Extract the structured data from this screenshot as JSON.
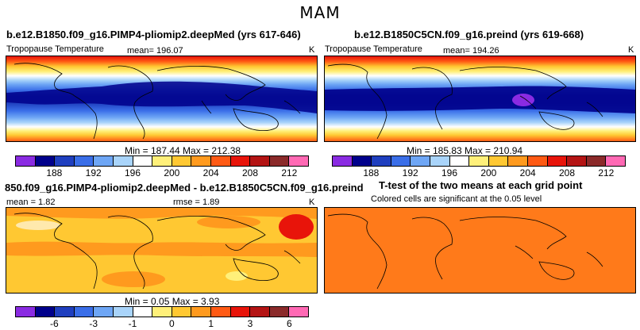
{
  "figure_title": "MAM",
  "panels": {
    "top_left": {
      "title": "b.e12.B1850.f09_g16.PIMP4-pliomip2.deepMed (yrs 617-646)",
      "variable": "Tropopause Temperature",
      "mean_label": "mean= 196.07",
      "unit": "K",
      "minmax": "Min = 187.44 Max = 212.38"
    },
    "top_right": {
      "title": "b.e12.B1850C5CN.f09_g16.preind (yrs 619-668)",
      "variable": "Tropopause Temperature",
      "mean_label": "mean= 194.26",
      "unit": "K",
      "minmax": "Min = 185.83 Max = 210.94"
    },
    "bottom_left": {
      "title": "850.f09_g16.PIMP4-pliomip2.deepMed - b.e12.B1850C5CN.f09_g16.preind",
      "mean_label": "mean =    1.82",
      "rmse_label": "rmse =    1.89",
      "unit": "K",
      "minmax": "Min =     0.05 Max =     3.93"
    },
    "bottom_right": {
      "title": "T-test of the two means at each grid point",
      "subtitle": "Colored cells are significant at the 0.05 level"
    }
  },
  "colorbars": {
    "abs": {
      "colors": [
        "#8a2be2",
        "#00008b",
        "#1f3fbf",
        "#3a6ee8",
        "#6ea6f5",
        "#a9d4fa",
        "#ffffff",
        "#fff07a",
        "#ffc832",
        "#ff9a1e",
        "#ff5a14",
        "#e8140a",
        "#b41414",
        "#8b2a2a",
        "#ff69b4"
      ],
      "ticks": [
        "188",
        "192",
        "196",
        "200",
        "204",
        "208",
        "212"
      ]
    },
    "diff": {
      "colors": [
        "#8a2be2",
        "#00008b",
        "#1f3fbf",
        "#3a6ee8",
        "#6ea6f5",
        "#a9d4fa",
        "#ffffff",
        "#fff07a",
        "#ffc832",
        "#ff9a1e",
        "#ff5a14",
        "#e8140a",
        "#b41414",
        "#8b2a2a",
        "#ff69b4"
      ],
      "ticks": [
        "-6",
        "-3",
        "-1",
        "0",
        "1",
        "3",
        "6"
      ]
    }
  }
}
